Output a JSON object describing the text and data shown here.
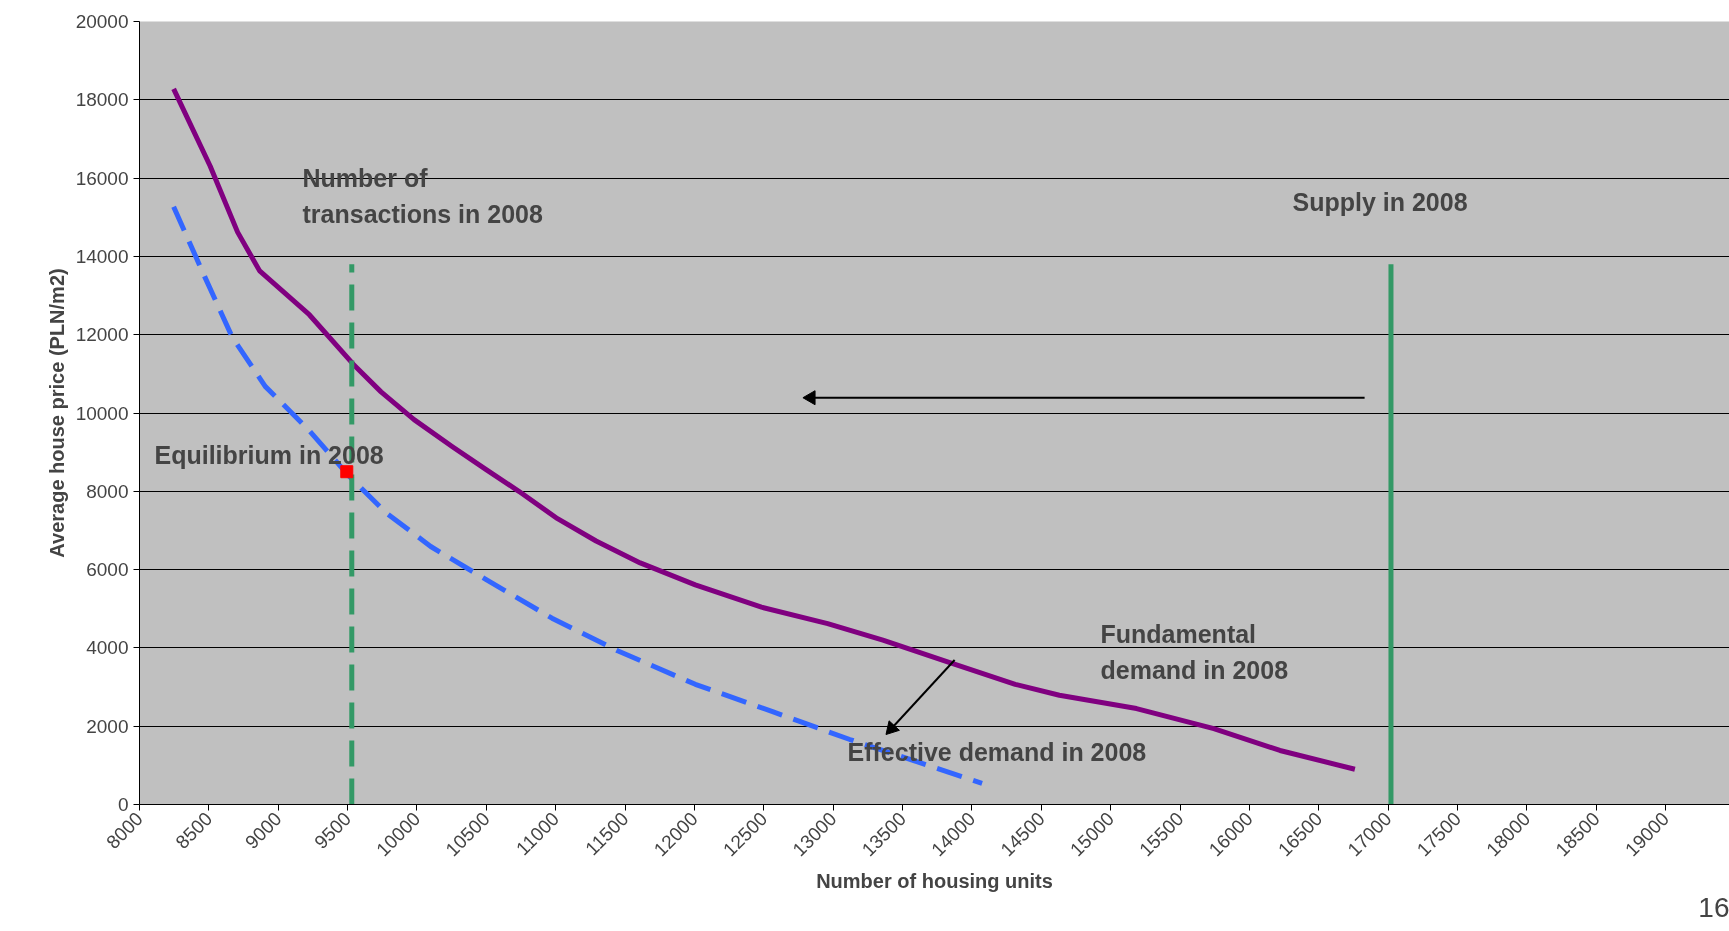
{
  "chart_data": {
    "type": "line",
    "xlabel": "Number of housing units",
    "ylabel": "Average house price (PLN/m2)",
    "xlim": [
      8000,
      19460
    ],
    "xticks": [
      8000,
      8500,
      9000,
      9500,
      10000,
      10500,
      11000,
      11500,
      12000,
      12500,
      13000,
      13500,
      14000,
      14500,
      15000,
      15500,
      16000,
      16500,
      17000,
      17500,
      18000,
      18500,
      19000
    ],
    "ylim": [
      0,
      20000
    ],
    "yticks": [
      0,
      2000,
      4000,
      6000,
      8000,
      10000,
      12000,
      14000,
      16000,
      18000,
      20000
    ],
    "grid": "y",
    "series": [
      {
        "color": "#800080",
        "line_style": "solid",
        "x": [
          8246,
          8509,
          8707,
          8866,
          9224,
          9542,
          9741,
          9979,
          10258,
          10496,
          10734,
          11013,
          11291,
          11609,
          12006,
          12483,
          12960,
          13358,
          13835,
          14312,
          14630,
          15186,
          15743,
          16220,
          16760
        ],
        "values": [
          18280,
          16310,
          14620,
          13630,
          12510,
          11240,
          10540,
          9830,
          9130,
          8560,
          8000,
          7300,
          6730,
          6170,
          5610,
          5040,
          4620,
          4200,
          3630,
          3070,
          2790,
          2450,
          1940,
          1380,
          900
        ]
      },
      {
        "color": "#3366ff",
        "line_style": "dashed",
        "x": [
          8246,
          8469,
          8668,
          8906,
          9224,
          9502,
          9781,
          10099,
          10496,
          10973,
          11450,
          12006,
          12563,
          13120,
          13597,
          14073
        ],
        "values": [
          15270,
          13490,
          11940,
          10680,
          9550,
          8420,
          7440,
          6590,
          5750,
          4760,
          3920,
          3070,
          2370,
          1660,
          1100,
          540
        ]
      },
      {
        "color": "#339966",
        "line_style": "dashed",
        "x": [
          9530,
          9530
        ],
        "values": [
          0,
          13800
        ]
      },
      {
        "color": "#339966",
        "line_style": "solid",
        "x": [
          17020,
          17020
        ],
        "values": [
          0,
          13800
        ]
      },
      {
        "type": "scatter",
        "color": "#ff0000",
        "marker": "square",
        "x": [
          9494
        ],
        "values": [
          8500
        ]
      },
      {
        "color": "#000000",
        "line_style": "solid",
        "marker": "triangle",
        "x": [
          16830,
          12840
        ],
        "values": [
          10390,
          10390
        ]
      },
      {
        "color": "#000000",
        "line_style": "solid",
        "marker": "triangle",
        "x": [
          13875,
          13420
        ],
        "values": [
          3690,
          1940
        ]
      }
    ],
    "annotations": [
      "Number of\ntransactions in 2008",
      "Supply in 2008",
      "Equilibrium in 2008",
      "Fundamental\ndemand in 2008",
      "Effective demand in 2008",
      "16"
    ]
  }
}
